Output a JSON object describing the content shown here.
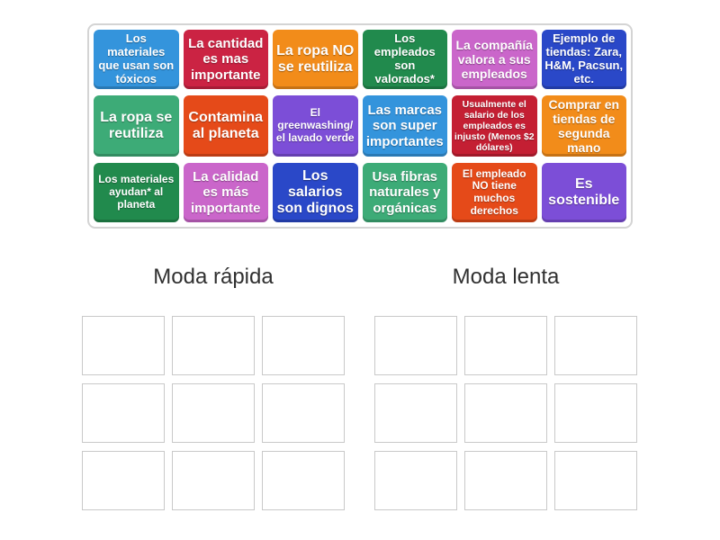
{
  "tiles": [
    {
      "text": "Los materiales que usan son tóxicos",
      "color": "#3494dc"
    },
    {
      "text": "La cantidad es mas importante",
      "color": "#cb2343"
    },
    {
      "text": "La ropa NO se reutiliza",
      "color": "#f28c1a"
    },
    {
      "text": "Los empleados son valorados*",
      "color": "#218a4d"
    },
    {
      "text": "La compañía valora a sus empleados",
      "color": "#ca66ca"
    },
    {
      "text": "Ejemplo de tiendas: Zara, H&M, Pacsun, etc.",
      "color": "#2a48c8"
    },
    {
      "text": "La ropa se reutiliza",
      "color": "#3dab77"
    },
    {
      "text": "Contamina al planeta",
      "color": "#e54a19"
    },
    {
      "text": "El greenwashing/ el lavado verde",
      "color": "#7c4ed7"
    },
    {
      "text": "Las marcas son super importantes",
      "color": "#3494dc"
    },
    {
      "text": "Usualmente el salario de los empleados es injusto (Menos $2 dólares)",
      "color": "#c41f33"
    },
    {
      "text": "Comprar en tiendas de segunda mano",
      "color": "#f28c1a"
    },
    {
      "text": "Los materiales ayudan* al planeta",
      "color": "#218a4d"
    },
    {
      "text": "La calidad es más importante",
      "color": "#ca66ca"
    },
    {
      "text": "Los salarios son dignos",
      "color": "#2a48c8"
    },
    {
      "text": "Usa fibras naturales y orgánicas",
      "color": "#3dab77"
    },
    {
      "text": "El empleado NO tiene muchos derechos",
      "color": "#e54a19"
    },
    {
      "text": "Es sostenible",
      "color": "#7c4ed7"
    }
  ],
  "groups": [
    {
      "label": "Moda rápida",
      "slot_count": 9
    },
    {
      "label": "Moda lenta",
      "slot_count": 9
    }
  ]
}
